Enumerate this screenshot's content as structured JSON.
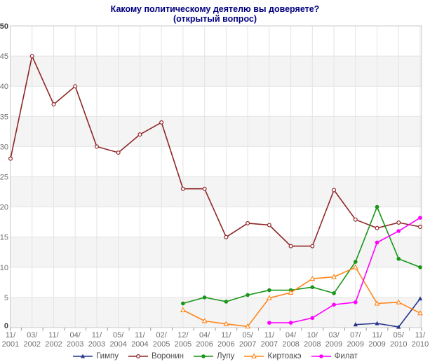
{
  "title": {
    "line1": "Какому политическому деятелю вы доверяете?",
    "line2": "(открытый вопрос)"
  },
  "colors": {
    "title": "#00007e",
    "band": "#f4f4f4",
    "grid": "#e4e4e4",
    "border": "#c8c8c8",
    "tick": "#9a9a9a",
    "axis_text": "#6e6e6e",
    "axis_text_bold": "#3d3d3d",
    "legend_text": "#4d4d4d"
  },
  "chart_data": {
    "type": "line",
    "title": "Какому политическому деятелю вы доверяете? (открытый вопрос)",
    "xlabel": "",
    "ylabel": "",
    "ylim": [
      0,
      50
    ],
    "ytick_step": 5,
    "grid": true,
    "legend_position": "bottom",
    "bands": [
      [
        0,
        5
      ],
      [
        10,
        15
      ],
      [
        20,
        25
      ],
      [
        30,
        35
      ],
      [
        40,
        45
      ]
    ],
    "categories": [
      "11/2001",
      "03/2002",
      "11/2002",
      "04/2003",
      "11/2003",
      "05/2004",
      "11/2004",
      "02/2005",
      "12/2005",
      "04/2006",
      "11/2006",
      "05/2007",
      "11/2007",
      "04/2008",
      "10/2008",
      "03/2009",
      "07/2009",
      "11/2009",
      "05/2010",
      "11/2010"
    ],
    "series": [
      {
        "name": "Гимпу",
        "slug": "ghimpu",
        "color": "#26358c",
        "marker": "triangle-filled",
        "values": [
          null,
          null,
          null,
          null,
          null,
          null,
          null,
          null,
          null,
          null,
          null,
          null,
          null,
          null,
          null,
          null,
          0.5,
          0.7,
          0.1,
          4.8
        ]
      },
      {
        "name": "Воронин",
        "slug": "voronin",
        "color": "#8e2626",
        "marker": "circle-open",
        "values": [
          28,
          45,
          37,
          40,
          30,
          29,
          32,
          34,
          23,
          23,
          15,
          17.3,
          17,
          13.5,
          13.5,
          22.8,
          17.9,
          16.5,
          17.4,
          16.7
        ]
      },
      {
        "name": "Лупу",
        "slug": "lupu",
        "color": "#189618",
        "marker": "circle-filled",
        "values": [
          null,
          null,
          null,
          null,
          null,
          null,
          null,
          null,
          4,
          5,
          4.3,
          5.4,
          6.2,
          6.2,
          6.7,
          5.7,
          10.9,
          20,
          11.4,
          10
        ]
      },
      {
        "name": "Киртоакэ",
        "slug": "chirtoaca",
        "color": "#ff851b",
        "marker": "triangle-open",
        "values": [
          null,
          null,
          null,
          null,
          null,
          null,
          null,
          null,
          2.9,
          1.1,
          0.6,
          0.2,
          4.9,
          5.8,
          8.1,
          8.4,
          10,
          4,
          4.2,
          2.4
        ]
      },
      {
        "name": "Филат",
        "slug": "filat",
        "color": "#ff00ff",
        "marker": "circle-filled",
        "values": [
          null,
          null,
          null,
          null,
          null,
          null,
          null,
          null,
          null,
          null,
          null,
          null,
          0.8,
          0.8,
          1.6,
          3.8,
          4.2,
          14.1,
          16,
          18.2
        ]
      }
    ]
  }
}
